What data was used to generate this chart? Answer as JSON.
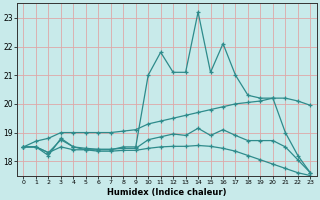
{
  "xlabel": "Humidex (Indice chaleur)",
  "x": [
    0,
    1,
    2,
    3,
    4,
    5,
    6,
    7,
    8,
    9,
    10,
    11,
    12,
    13,
    14,
    15,
    16,
    17,
    18,
    19,
    20,
    21,
    22,
    23
  ],
  "line1": [
    18.5,
    18.5,
    18.2,
    18.8,
    18.5,
    18.4,
    18.4,
    18.4,
    18.5,
    18.5,
    21.0,
    21.8,
    21.1,
    21.1,
    23.2,
    21.1,
    22.1,
    21.0,
    20.3,
    20.2,
    20.2,
    19.0,
    18.2,
    17.6
  ],
  "line2": [
    18.5,
    18.7,
    18.8,
    19.0,
    19.0,
    19.0,
    19.0,
    19.0,
    19.05,
    19.1,
    19.3,
    19.4,
    19.5,
    19.6,
    19.7,
    19.8,
    19.9,
    20.0,
    20.05,
    20.1,
    20.2,
    20.2,
    20.1,
    19.95
  ],
  "line3": [
    18.5,
    18.5,
    18.3,
    18.5,
    18.4,
    18.4,
    18.35,
    18.35,
    18.38,
    18.38,
    18.45,
    18.5,
    18.52,
    18.52,
    18.55,
    18.52,
    18.45,
    18.35,
    18.2,
    18.05,
    17.9,
    17.75,
    17.6,
    17.5
  ],
  "line4": [
    18.5,
    18.5,
    18.3,
    18.75,
    18.5,
    18.45,
    18.42,
    18.42,
    18.45,
    18.45,
    18.75,
    18.85,
    18.95,
    18.9,
    19.15,
    18.9,
    19.1,
    18.9,
    18.72,
    18.72,
    18.72,
    18.5,
    18.05,
    17.6
  ],
  "line_color": "#2e8b8b",
  "bg_color": "#c8eaea",
  "grid_color": "#dea8a8",
  "ylim": [
    17.5,
    23.5
  ],
  "xlim": [
    -0.5,
    23.5
  ],
  "yticks": [
    18,
    19,
    20,
    21,
    22,
    23
  ]
}
